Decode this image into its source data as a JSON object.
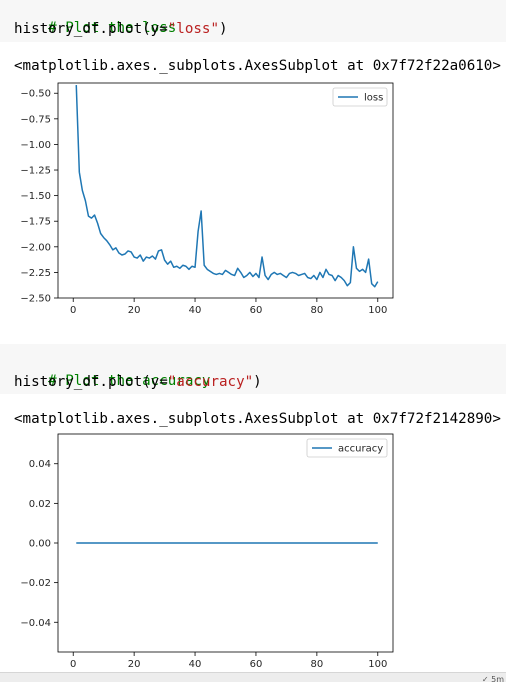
{
  "cells": [
    {
      "code": {
        "comment": "# Plot the loss",
        "call_prefix": "history_df.plot(y=",
        "call_string": "\"loss\"",
        "call_suffix": ")"
      },
      "output": "<matplotlib.axes._subplots.AxesSubplot at 0x7f72f22a0610>"
    },
    {
      "code": {
        "comment": "# Plot the accuracy",
        "call_prefix": "history_df.plot(y=",
        "call_string": "\"accuracy\"",
        "call_suffix": ")"
      },
      "output": "<matplotlib.axes._subplots.AxesSubplot at 0x7f72f2142890>"
    }
  ],
  "status_text": "✓ 5m",
  "colors": {
    "series": "#1f77b4",
    "comment": "#008000",
    "string": "#ba2121"
  },
  "chart_data": [
    {
      "type": "line",
      "legend": [
        "loss"
      ],
      "legend_position": "top-right",
      "grid": false,
      "xlim": [
        -5,
        105
      ],
      "ylim": [
        -2.5,
        -0.4
      ],
      "x_ticks": [
        0,
        20,
        40,
        60,
        80,
        100
      ],
      "x_tick_labels": [
        "0",
        "20",
        "40",
        "60",
        "80",
        "100"
      ],
      "y_ticks": [
        -0.5,
        -0.75,
        -1.0,
        -1.25,
        -1.5,
        -1.75,
        -2.0,
        -2.25,
        -2.5
      ],
      "y_tick_labels": [
        "−0.50",
        "−0.75",
        "−1.00",
        "−1.25",
        "−1.50",
        "−1.75",
        "−2.00",
        "−2.25",
        "−2.50"
      ],
      "series": [
        {
          "name": "loss",
          "x": [
            1,
            2,
            3,
            4,
            5,
            6,
            7,
            8,
            9,
            10,
            11,
            12,
            13,
            14,
            15,
            16,
            17,
            18,
            19,
            20,
            21,
            22,
            23,
            24,
            25,
            26,
            27,
            28,
            29,
            30,
            31,
            32,
            33,
            34,
            35,
            36,
            37,
            38,
            39,
            40,
            41,
            42,
            43,
            44,
            45,
            46,
            47,
            48,
            49,
            50,
            51,
            52,
            53,
            54,
            55,
            56,
            57,
            58,
            59,
            60,
            61,
            62,
            63,
            64,
            65,
            66,
            67,
            68,
            69,
            70,
            71,
            72,
            73,
            74,
            75,
            76,
            77,
            78,
            79,
            80,
            81,
            82,
            83,
            84,
            85,
            86,
            87,
            88,
            89,
            90,
            91,
            92,
            93,
            94,
            95,
            96,
            97,
            98,
            99,
            100
          ],
          "y": [
            -0.42,
            -1.27,
            -1.45,
            -1.55,
            -1.7,
            -1.72,
            -1.69,
            -1.77,
            -1.87,
            -1.91,
            -1.94,
            -1.98,
            -2.03,
            -2.01,
            -2.06,
            -2.08,
            -2.07,
            -2.04,
            -2.05,
            -2.1,
            -2.11,
            -2.08,
            -2.14,
            -2.1,
            -2.11,
            -2.09,
            -2.12,
            -2.04,
            -2.03,
            -2.13,
            -2.17,
            -2.14,
            -2.2,
            -2.19,
            -2.21,
            -2.18,
            -2.19,
            -2.22,
            -2.19,
            -2.2,
            -1.85,
            -1.65,
            -2.18,
            -2.22,
            -2.24,
            -2.26,
            -2.27,
            -2.26,
            -2.27,
            -2.23,
            -2.25,
            -2.27,
            -2.28,
            -2.21,
            -2.25,
            -2.3,
            -2.28,
            -2.25,
            -2.29,
            -2.26,
            -2.3,
            -2.1,
            -2.28,
            -2.32,
            -2.27,
            -2.25,
            -2.27,
            -2.26,
            -2.28,
            -2.3,
            -2.26,
            -2.25,
            -2.26,
            -2.28,
            -2.27,
            -2.26,
            -2.3,
            -2.31,
            -2.28,
            -2.32,
            -2.25,
            -2.3,
            -2.22,
            -2.27,
            -2.28,
            -2.33,
            -2.28,
            -2.3,
            -2.33,
            -2.38,
            -2.35,
            -2.0,
            -2.21,
            -2.24,
            -2.22,
            -2.25,
            -2.12,
            -2.36,
            -2.39,
            -2.34
          ]
        }
      ]
    },
    {
      "type": "line",
      "legend": [
        "accuracy"
      ],
      "legend_position": "top-right",
      "grid": false,
      "xlim": [
        -5,
        105
      ],
      "ylim": [
        -0.055,
        0.055
      ],
      "x_ticks": [
        0,
        20,
        40,
        60,
        80,
        100
      ],
      "x_tick_labels": [
        "0",
        "20",
        "40",
        "60",
        "80",
        "100"
      ],
      "y_ticks": [
        0.04,
        0.02,
        0.0,
        -0.02,
        -0.04
      ],
      "y_tick_labels": [
        "0.04",
        "0.02",
        "0.00",
        "−0.02",
        "−0.04"
      ],
      "series": [
        {
          "name": "accuracy",
          "x": [
            1,
            100
          ],
          "y": [
            0.0,
            0.0
          ]
        }
      ]
    }
  ]
}
